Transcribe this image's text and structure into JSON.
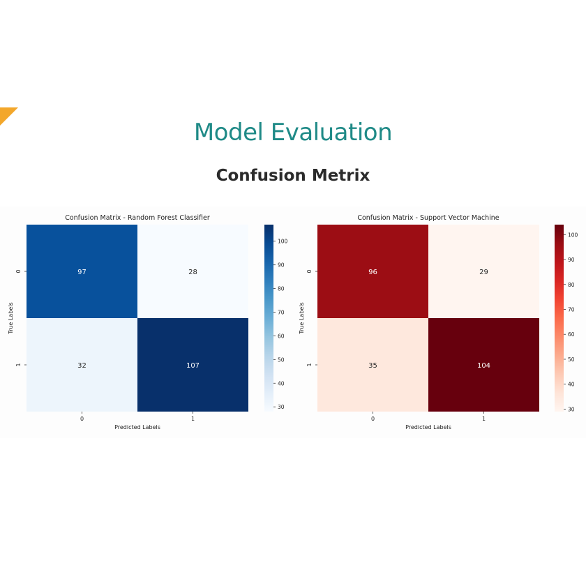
{
  "slide": {
    "title": "Model Evaluation",
    "subtitle": "Confusion Metrix",
    "title_color": "#1f8a87",
    "accent_color": "#f3a72b"
  },
  "chart_data": [
    {
      "type": "heatmap",
      "title": "Confusion Matrix - Random Forest Classifier",
      "xlabel": "Predicted Labels",
      "ylabel": "True Labels",
      "x_categories": [
        "0",
        "1"
      ],
      "y_categories": [
        "0",
        "1"
      ],
      "values": [
        [
          97,
          28
        ],
        [
          32,
          107
        ]
      ],
      "colormap": "Blues",
      "colorbar_range": [
        28,
        107
      ],
      "colorbar_ticks": [
        30,
        40,
        50,
        60,
        70,
        80,
        90,
        100
      ]
    },
    {
      "type": "heatmap",
      "title": "Confusion Matrix - Support Vector Machine",
      "xlabel": "Predicted Labels",
      "ylabel": "True Labels",
      "x_categories": [
        "0",
        "1"
      ],
      "y_categories": [
        "0",
        "1"
      ],
      "values": [
        [
          96,
          29
        ],
        [
          35,
          104
        ]
      ],
      "colormap": "Reds",
      "colorbar_range": [
        29,
        104
      ],
      "colorbar_ticks": [
        30,
        40,
        50,
        60,
        70,
        80,
        90,
        100
      ]
    }
  ]
}
